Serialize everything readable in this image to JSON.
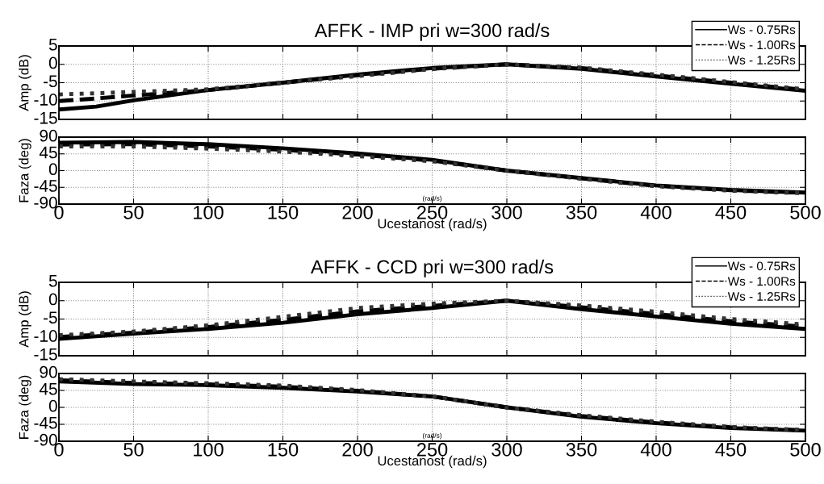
{
  "chart_data": [
    {
      "type": "line",
      "title": "AFFK - IMP pri w=300 rad/s",
      "ylabel": "Amp (dB)",
      "x": [
        0,
        25,
        50,
        100,
        150,
        200,
        250,
        300,
        350,
        400,
        450,
        500
      ],
      "xlim": [
        0,
        500
      ],
      "xticks": [
        0,
        50,
        100,
        150,
        200,
        250,
        300,
        350,
        400,
        450,
        500
      ],
      "ylim": [
        -15,
        5
      ],
      "yticks": [
        -15,
        -10,
        -5,
        0,
        5
      ],
      "tick_labels": "y",
      "grid": true,
      "legend": "top right",
      "series": [
        {
          "name": "Ws - 0.75Rs",
          "color": "#000000",
          "line_style": "solid",
          "values": [
            -12.3,
            -11.5,
            -9.8,
            -7,
            -5,
            -2.8,
            -1,
            0,
            -1.2,
            -3.3,
            -5.3,
            -7.2
          ]
        },
        {
          "name": "Ws - 1.00Rs",
          "color": "#000000",
          "line_style": "dashed",
          "values": [
            -10,
            -9.3,
            -8.5,
            -7,
            -5,
            -3,
            -1.2,
            0,
            -1,
            -3,
            -5,
            -7
          ]
        },
        {
          "name": "Ws - 1.25Rs",
          "color": "#333333",
          "line_style": "dotted",
          "values": [
            -8.2,
            -7.9,
            -7.5,
            -6.8,
            -5,
            -3.2,
            -1.3,
            0,
            -0.9,
            -2.8,
            -4.8,
            -6.8
          ]
        }
      ]
    },
    {
      "type": "line",
      "ylabel": "Faza (deg)",
      "xlabel": "Ucestanost (rad/s)",
      "annotations": [
        "(rad/s)"
      ],
      "x": [
        0,
        50,
        100,
        150,
        200,
        250,
        300,
        350,
        400,
        450,
        500
      ],
      "xlim": [
        0,
        500
      ],
      "xticks": [
        0,
        50,
        100,
        150,
        200,
        250,
        300,
        350,
        400,
        450,
        500
      ],
      "ylim": [
        -90,
        90
      ],
      "yticks": [
        -90,
        -45,
        0,
        45,
        90
      ],
      "grid": true,
      "series": [
        {
          "color": "#000000",
          "line_style": "solid",
          "values": [
            75,
            77,
            71,
            60,
            46,
            29,
            0,
            -20,
            -40,
            -52,
            -59
          ]
        },
        {
          "color": "#000000",
          "line_style": "dashed",
          "values": [
            70,
            71,
            65,
            56,
            43,
            27,
            0,
            -21,
            -41,
            -53,
            -60
          ]
        },
        {
          "color": "#333333",
          "line_style": "dotted",
          "values": [
            65,
            65,
            59,
            51,
            39,
            25,
            0,
            -22,
            -42,
            -54,
            -61
          ]
        }
      ]
    },
    {
      "type": "line",
      "title": "AFFK - CCD pri w=300 rad/s",
      "ylabel": "Amp (dB)",
      "x": [
        0,
        50,
        100,
        150,
        200,
        250,
        300,
        350,
        400,
        450,
        500
      ],
      "xlim": [
        0,
        500
      ],
      "xticks": [
        0,
        50,
        100,
        150,
        200,
        250,
        300,
        350,
        400,
        450,
        500
      ],
      "ylim": [
        -15,
        5
      ],
      "yticks": [
        -15,
        -10,
        -5,
        0,
        5
      ],
      "tick_labels": "y",
      "grid": true,
      "legend": "top right",
      "series": [
        {
          "name": "Ws - 0.75Rs",
          "color": "#000000",
          "line_style": "solid",
          "values": [
            -10.4,
            -9,
            -7.7,
            -6,
            -3.7,
            -2,
            0,
            -2.3,
            -4.3,
            -6.3,
            -7.7
          ]
        },
        {
          "name": "Ws - 1.00Rs",
          "color": "#000000",
          "line_style": "dashed",
          "values": [
            -9.9,
            -8.7,
            -7.2,
            -5.2,
            -2.9,
            -1.4,
            0,
            -1.8,
            -3.6,
            -5.6,
            -7.1
          ]
        },
        {
          "name": "Ws - 1.25Rs",
          "color": "#333333",
          "line_style": "dotted",
          "values": [
            -9.4,
            -8.4,
            -6.7,
            -4.4,
            -2,
            -0.8,
            0,
            -1.3,
            -3,
            -5,
            -6.5
          ]
        }
      ]
    },
    {
      "type": "line",
      "ylabel": "Faza (deg)",
      "xlabel": "Ucestanost (rad/s)",
      "annotations": [
        "(rad/s)"
      ],
      "x": [
        0,
        50,
        100,
        150,
        200,
        250,
        300,
        350,
        400,
        450,
        500
      ],
      "xlim": [
        0,
        500
      ],
      "xticks": [
        0,
        50,
        100,
        150,
        200,
        250,
        300,
        350,
        400,
        450,
        500
      ],
      "ylim": [
        -90,
        90
      ],
      "yticks": [
        -90,
        -45,
        0,
        45,
        90
      ],
      "grid": true,
      "series": [
        {
          "color": "#000000",
          "line_style": "solid",
          "values": [
            69,
            62,
            59,
            52,
            42,
            29,
            0,
            -25,
            -42,
            -55,
            -62
          ]
        },
        {
          "color": "#000000",
          "line_style": "dashed",
          "values": [
            72,
            65,
            61,
            55,
            44,
            29,
            0,
            -23,
            -40,
            -53,
            -61
          ]
        },
        {
          "color": "#333333",
          "line_style": "dotted",
          "values": [
            75,
            69,
            64,
            58,
            46,
            29,
            0,
            -21,
            -38,
            -52,
            -60
          ]
        }
      ]
    }
  ]
}
